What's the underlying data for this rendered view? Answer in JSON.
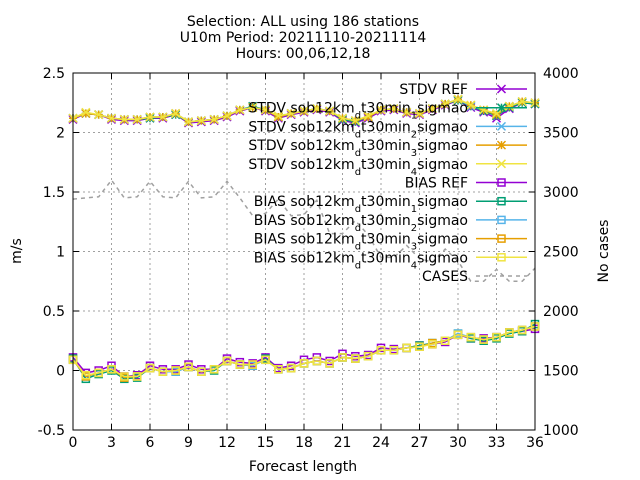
{
  "header": {
    "title_line1": "Selection: ALL using    186 stations",
    "title_line2": "U10m   Period: 20211110-20211114",
    "title_line3": "Hours: 00,06,12,18"
  },
  "axes": {
    "xlabel": "Forecast length",
    "ylabel": "m/s",
    "y2label": "No cases"
  },
  "chart_data": {
    "type": "line",
    "x": [
      0,
      1,
      2,
      3,
      4,
      5,
      6,
      7,
      8,
      9,
      10,
      11,
      12,
      13,
      14,
      15,
      16,
      17,
      18,
      19,
      20,
      21,
      22,
      23,
      24,
      25,
      26,
      27,
      28,
      29,
      30,
      31,
      32,
      33,
      34,
      35,
      36
    ],
    "xlim": [
      0,
      36
    ],
    "ylim": [
      -0.5,
      2.5
    ],
    "y2lim": [
      1000,
      4000
    ],
    "xticks": [
      0,
      3,
      6,
      9,
      12,
      15,
      18,
      21,
      24,
      27,
      30,
      33,
      36
    ],
    "yticks": [
      -0.5,
      0,
      0.5,
      1,
      1.5,
      2,
      2.5
    ],
    "y2ticks": [
      1000,
      1500,
      2000,
      2500,
      3000,
      3500,
      4000
    ],
    "grid": true,
    "legend_position": "top-right",
    "series": [
      {
        "name": "STDV REF",
        "color": "#9400d3",
        "marker": "x",
        "axis": "y",
        "values": [
          2.11,
          2.16,
          2.15,
          2.11,
          2.1,
          2.1,
          2.12,
          2.12,
          2.15,
          2.08,
          2.09,
          2.1,
          2.13,
          2.18,
          2.21,
          2.18,
          2.12,
          2.15,
          2.17,
          2.19,
          2.17,
          2.1,
          2.08,
          2.12,
          2.18,
          2.19,
          2.16,
          2.15,
          2.19,
          2.23,
          2.27,
          2.21,
          2.17,
          2.12,
          2.2,
          2.25,
          2.24
        ]
      },
      {
        "name": "STDV sob12km_dt30min_1sigmao",
        "color": "#009e73",
        "marker": "star",
        "axis": "y",
        "values": [
          2.12,
          2.16,
          2.15,
          2.12,
          2.11,
          2.11,
          2.12,
          2.13,
          2.15,
          2.09,
          2.1,
          2.11,
          2.14,
          2.19,
          2.22,
          2.19,
          2.13,
          2.16,
          2.18,
          2.2,
          2.18,
          2.11,
          2.09,
          2.13,
          2.19,
          2.2,
          2.17,
          2.16,
          2.2,
          2.24,
          2.27,
          2.22,
          2.18,
          2.14,
          2.21,
          2.25,
          2.24
        ]
      },
      {
        "name": "STDV sob12km_dt30min_2sigmao",
        "color": "#56b4e9",
        "marker": "x",
        "axis": "y",
        "values": [
          2.12,
          2.16,
          2.15,
          2.12,
          2.11,
          2.11,
          2.13,
          2.13,
          2.16,
          2.09,
          2.1,
          2.11,
          2.14,
          2.19,
          2.21,
          2.19,
          2.13,
          2.16,
          2.18,
          2.2,
          2.18,
          2.12,
          2.1,
          2.13,
          2.19,
          2.2,
          2.17,
          2.16,
          2.2,
          2.24,
          2.28,
          2.22,
          2.19,
          2.15,
          2.22,
          2.26,
          2.25
        ]
      },
      {
        "name": "STDV sob12km_dt30min_3sigmao",
        "color": "#e69f00",
        "marker": "star",
        "axis": "y",
        "values": [
          2.12,
          2.16,
          2.15,
          2.12,
          2.11,
          2.11,
          2.13,
          2.13,
          2.16,
          2.09,
          2.1,
          2.11,
          2.14,
          2.19,
          2.21,
          2.19,
          2.13,
          2.16,
          2.18,
          2.2,
          2.18,
          2.12,
          2.1,
          2.13,
          2.19,
          2.2,
          2.17,
          2.16,
          2.2,
          2.24,
          2.28,
          2.23,
          2.19,
          2.15,
          2.22,
          2.26,
          2.25
        ]
      },
      {
        "name": "STDV sob12km_dt30min_4sigmao",
        "color": "#f0e442",
        "marker": "x",
        "axis": "y",
        "values": [
          2.12,
          2.17,
          2.15,
          2.12,
          2.11,
          2.11,
          2.13,
          2.13,
          2.16,
          2.09,
          2.1,
          2.11,
          2.14,
          2.19,
          2.21,
          2.19,
          2.14,
          2.16,
          2.18,
          2.2,
          2.18,
          2.12,
          2.1,
          2.14,
          2.19,
          2.2,
          2.17,
          2.16,
          2.2,
          2.24,
          2.28,
          2.23,
          2.19,
          2.16,
          2.22,
          2.26,
          2.25
        ]
      },
      {
        "name": "BIAS REF",
        "color": "#9400d3",
        "marker": "square",
        "axis": "y",
        "values": [
          0.11,
          -0.02,
          0.0,
          0.04,
          -0.05,
          -0.04,
          0.04,
          0.01,
          0.01,
          0.05,
          0.01,
          0.01,
          0.1,
          0.07,
          0.06,
          0.11,
          0.02,
          0.04,
          0.09,
          0.11,
          0.08,
          0.14,
          0.12,
          0.13,
          0.19,
          0.18,
          0.19,
          0.21,
          0.22,
          0.24,
          0.3,
          0.27,
          0.27,
          0.28,
          0.32,
          0.33,
          0.35
        ]
      },
      {
        "name": "BIAS sob12km_dt30min_1sigmao",
        "color": "#009e73",
        "marker": "square",
        "axis": "y",
        "values": [
          0.1,
          -0.07,
          -0.03,
          0.0,
          -0.07,
          -0.06,
          0.02,
          -0.01,
          -0.01,
          0.03,
          -0.01,
          0.0,
          0.08,
          0.05,
          0.04,
          0.1,
          0.01,
          0.02,
          0.06,
          0.08,
          0.06,
          0.11,
          0.1,
          0.12,
          0.17,
          0.17,
          0.19,
          0.21,
          0.23,
          0.25,
          0.31,
          0.27,
          0.25,
          0.27,
          0.31,
          0.33,
          0.39
        ]
      },
      {
        "name": "BIAS sob12km_dt30min_2sigmao",
        "color": "#56b4e9",
        "marker": "square",
        "axis": "y",
        "values": [
          0.09,
          -0.05,
          -0.02,
          0.01,
          -0.06,
          -0.05,
          0.02,
          -0.01,
          -0.01,
          0.03,
          -0.01,
          0.01,
          0.08,
          0.05,
          0.04,
          0.09,
          0.01,
          0.02,
          0.06,
          0.08,
          0.06,
          0.11,
          0.1,
          0.12,
          0.17,
          0.17,
          0.19,
          0.2,
          0.23,
          0.25,
          0.31,
          0.28,
          0.26,
          0.28,
          0.32,
          0.34,
          0.37
        ]
      },
      {
        "name": "BIAS sob12km_dt30min_3sigmao",
        "color": "#e69f00",
        "marker": "square",
        "axis": "y",
        "values": [
          0.09,
          -0.05,
          -0.02,
          0.01,
          -0.06,
          -0.05,
          0.02,
          -0.01,
          0.0,
          0.03,
          -0.01,
          0.01,
          0.08,
          0.05,
          0.05,
          0.09,
          0.01,
          0.02,
          0.06,
          0.08,
          0.06,
          0.11,
          0.1,
          0.12,
          0.17,
          0.17,
          0.19,
          0.2,
          0.23,
          0.25,
          0.3,
          0.28,
          0.26,
          0.28,
          0.32,
          0.34,
          0.37
        ]
      },
      {
        "name": "BIAS sob12km_dt30min_4sigmao",
        "color": "#f0e442",
        "marker": "square",
        "axis": "y",
        "values": [
          0.09,
          -0.04,
          -0.02,
          0.01,
          -0.05,
          -0.05,
          0.02,
          -0.01,
          0.0,
          0.03,
          -0.01,
          0.01,
          0.08,
          0.05,
          0.05,
          0.09,
          0.01,
          0.02,
          0.06,
          0.08,
          0.06,
          0.11,
          0.1,
          0.12,
          0.17,
          0.17,
          0.19,
          0.2,
          0.22,
          0.25,
          0.3,
          0.28,
          0.26,
          0.28,
          0.32,
          0.34,
          0.37
        ]
      },
      {
        "name": "CASES",
        "color": "#a0a0a0",
        "marker": "none",
        "dash": true,
        "axis": "y2",
        "values": [
          2940,
          2950,
          2960,
          3100,
          2950,
          2960,
          3090,
          2960,
          2950,
          3090,
          2950,
          2960,
          3090,
          2950,
          2800,
          2820,
          2940,
          2800,
          2810,
          2930,
          2650,
          2650,
          2760,
          2640,
          2450,
          2450,
          2550,
          2440,
          2410,
          2520,
          2420,
          2250,
          2250,
          2350,
          2250,
          2250,
          2360
        ]
      }
    ]
  },
  "legend_labels": [
    {
      "main": "STDV REF"
    },
    {
      "main": "STDV sob12km",
      "sub1": "d",
      "mid": "t30min",
      "sub2": "1",
      "tail": "sigmao"
    },
    {
      "main": "STDV sob12km",
      "sub1": "d",
      "mid": "t30min",
      "sub2": "2",
      "tail": "sigmao"
    },
    {
      "main": "STDV sob12km",
      "sub1": "d",
      "mid": "t30min",
      "sub2": "3",
      "tail": "sigmao"
    },
    {
      "main": "STDV sob12km",
      "sub1": "d",
      "mid": "t30min",
      "sub2": "4",
      "tail": "sigmao"
    },
    {
      "main": "BIAS REF"
    },
    {
      "main": "BIAS sob12km",
      "sub1": "d",
      "mid": "t30min",
      "sub2": "1",
      "tail": "sigmao"
    },
    {
      "main": "BIAS sob12km",
      "sub1": "d",
      "mid": "t30min",
      "sub2": "2",
      "tail": "sigmao"
    },
    {
      "main": "BIAS sob12km",
      "sub1": "d",
      "mid": "t30min",
      "sub2": "3",
      "tail": "sigmao"
    },
    {
      "main": "BIAS sob12km",
      "sub1": "d",
      "mid": "t30min",
      "sub2": "4",
      "tail": "sigmao"
    },
    {
      "main": "CASES"
    }
  ]
}
